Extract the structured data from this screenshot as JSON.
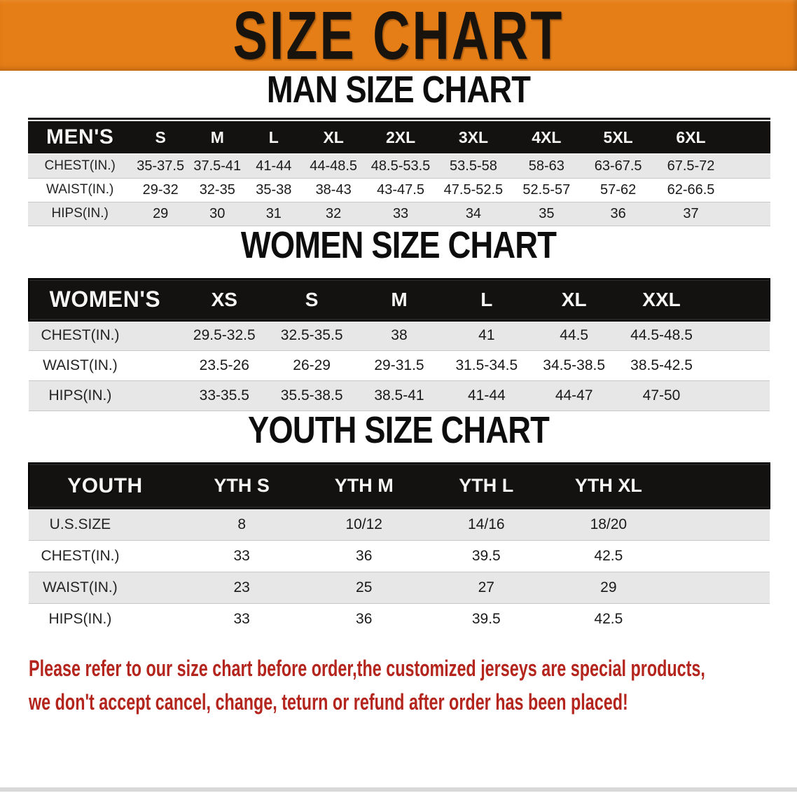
{
  "banner": {
    "title": "SIZE CHART"
  },
  "colors": {
    "banner_bg": "#E67E17",
    "header_bar": "#141210",
    "shade_row": "#E7E7E7",
    "warn_red": "#B3251D"
  },
  "tables": [
    {
      "name": "mens",
      "heading": "MAN SIZE CHART",
      "label": "MEN'S",
      "columns": [
        "S",
        "M",
        "L",
        "XL",
        "2XL",
        "3XL",
        "4XL",
        "5XL",
        "6XL"
      ],
      "rows": [
        {
          "label": "CHEST(IN.)",
          "values": [
            "35-37.5",
            "37.5-41",
            "41-44",
            "44-48.5",
            "48.5-53.5",
            "53.5-58",
            "58-63",
            "63-67.5",
            "67.5-72"
          ]
        },
        {
          "label": "WAIST(IN.)",
          "values": [
            "29-32",
            "32-35",
            "35-38",
            "38-43",
            "43-47.5",
            "47.5-52.5",
            "52.5-57",
            "57-62",
            "62-66.5"
          ]
        },
        {
          "label": "HIPS(IN.)",
          "values": [
            "29",
            "30",
            "31",
            "32",
            "33",
            "34",
            "35",
            "36",
            "37"
          ]
        }
      ]
    },
    {
      "name": "womens",
      "heading": "WOMEN SIZE CHART",
      "label": "WOMEN'S",
      "columns": [
        "XS",
        "S",
        "M",
        "L",
        "XL",
        "XXL"
      ],
      "rows": [
        {
          "label": "CHEST(IN.)",
          "values": [
            "29.5-32.5",
            "32.5-35.5",
            "38",
            "41",
            "44.5",
            "44.5-48.5"
          ]
        },
        {
          "label": "WAIST(IN.)",
          "values": [
            "23.5-26",
            "26-29",
            "29-31.5",
            "31.5-34.5",
            "34.5-38.5",
            "38.5-42.5"
          ]
        },
        {
          "label": "HIPS(IN.)",
          "values": [
            "33-35.5",
            "35.5-38.5",
            "38.5-41",
            "41-44",
            "44-47",
            "47-50"
          ]
        }
      ]
    },
    {
      "name": "youth",
      "heading": "YOUTH SIZE CHART",
      "label": "YOUTH",
      "columns": [
        "YTH S",
        "YTH M",
        "YTH L",
        "YTH XL"
      ],
      "rows": [
        {
          "label": "U.S.SIZE",
          "values": [
            "8",
            "10/12",
            "14/16",
            "18/20"
          ]
        },
        {
          "label": "CHEST(IN.)",
          "values": [
            "33",
            "36",
            "39.5",
            "42.5"
          ]
        },
        {
          "label": "WAIST(IN.)",
          "values": [
            "23",
            "25",
            "27",
            "29"
          ]
        },
        {
          "label": "HIPS(IN.)",
          "values": [
            "33",
            "36",
            "39.5",
            "42.5"
          ]
        }
      ]
    }
  ],
  "disclaimer": {
    "line1": "Please refer to our size chart before order,the customized jerseys are special products,",
    "line2": "we don't accept cancel, change, teturn or refund after order has been placed!"
  }
}
